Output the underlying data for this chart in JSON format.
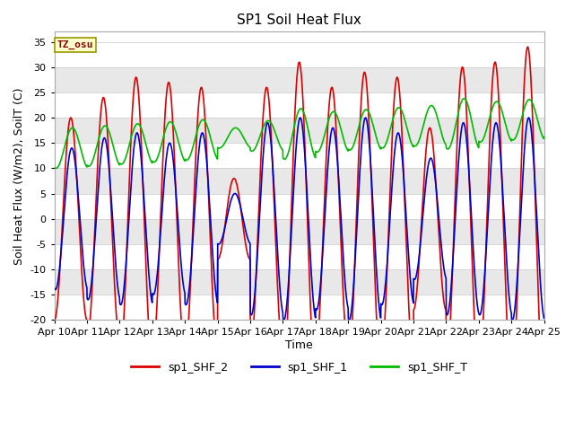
{
  "title": "SP1 Soil Heat Flux",
  "xlabel": "Time",
  "ylabel": "Soil Heat Flux (W/m2), SoilT (C)",
  "ylim": [
    -20,
    37
  ],
  "yticks": [
    -20,
    -15,
    -10,
    -5,
    0,
    5,
    10,
    15,
    20,
    25,
    30,
    35
  ],
  "xtick_labels": [
    "Apr 10",
    "Apr 11",
    "Apr 12",
    "Apr 13",
    "Apr 14",
    "Apr 15",
    "Apr 16",
    "Apr 17",
    "Apr 18",
    "Apr 19",
    "Apr 20",
    "Apr 21",
    "Apr 22",
    "Apr 23",
    "Apr 24",
    "Apr 25"
  ],
  "colors": {
    "sp1_SHF_2": "#dd0000",
    "sp1_SHF_1": "#0000cc",
    "sp1_SHF_T": "#00bb00"
  },
  "tz_label": "TZ_osu",
  "background_color": "#ffffff",
  "plot_bg_color": "#ffffff",
  "stripe_color": "#e8e8e8",
  "grid_color": "#d0d0d0",
  "linewidth": 1.2,
  "title_fontsize": 11,
  "axis_label_fontsize": 9,
  "tick_fontsize": 8
}
